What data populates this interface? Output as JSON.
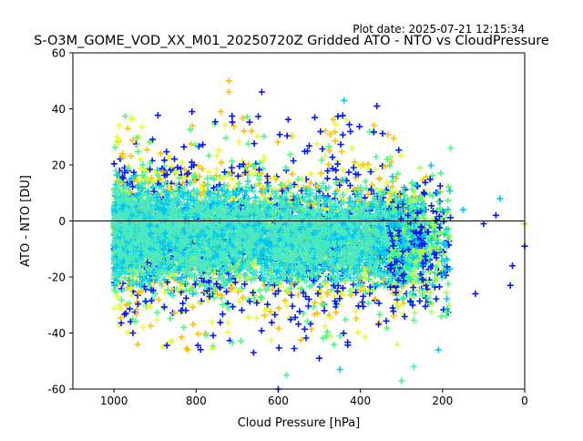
{
  "plot_date": "Plot date: 2025-07-21 12:15:34",
  "chart_data": {
    "type": "scatter",
    "title": "S-O3M_GOME_VOD_XX_M01_20250720Z Gridded ATO - NTO vs CloudPressure",
    "xlabel": "Cloud Pressure [hPa]",
    "ylabel": "ATO - NTO [DU]",
    "xlim": [
      1100,
      0
    ],
    "ylim": [
      -60,
      60
    ],
    "x_reversed": true,
    "grid": false,
    "reference_line_y": 0,
    "x_ticks": [
      1000,
      800,
      600,
      400,
      200,
      0
    ],
    "y_ticks": [
      -60,
      -40,
      -20,
      0,
      20,
      40,
      60
    ],
    "marker": "plus",
    "colors": {
      "core": "#4de8c0",
      "cyan": "#00c8f0",
      "lime": "#a8ff50",
      "yellow": "#e8ff30",
      "orange": "#ffc000",
      "blue": "#0018ff",
      "green": "#40ff80"
    },
    "sample_outliers": [
      {
        "x": 640,
        "y": 46,
        "c": "blue"
      },
      {
        "x": 720,
        "y": 50,
        "c": "orange"
      },
      {
        "x": 720,
        "y": 46,
        "c": "orange"
      },
      {
        "x": 440,
        "y": 43,
        "c": "cyan"
      },
      {
        "x": 360,
        "y": 41,
        "c": "blue"
      },
      {
        "x": 810,
        "y": 39,
        "c": "blue"
      },
      {
        "x": 740,
        "y": 39,
        "c": "orange"
      },
      {
        "x": 180,
        "y": 26,
        "c": "green"
      },
      {
        "x": 60,
        "y": 8,
        "c": "cyan"
      },
      {
        "x": 70,
        "y": 2,
        "c": "blue"
      },
      {
        "x": 0,
        "y": -1,
        "c": "orange"
      },
      {
        "x": 0,
        "y": -9,
        "c": "blue"
      },
      {
        "x": 30,
        "y": -16,
        "c": "blue"
      },
      {
        "x": 35,
        "y": -23,
        "c": "blue"
      },
      {
        "x": 210,
        "y": -46,
        "c": "cyan"
      },
      {
        "x": 600,
        "y": -60,
        "c": "blue"
      },
      {
        "x": 580,
        "y": -55,
        "c": "green"
      },
      {
        "x": 300,
        "y": -57,
        "c": "green"
      },
      {
        "x": 270,
        "y": -52,
        "c": "green"
      },
      {
        "x": 450,
        "y": -53,
        "c": "cyan"
      },
      {
        "x": 500,
        "y": -49,
        "c": "blue"
      },
      {
        "x": 660,
        "y": -47,
        "c": "blue"
      },
      {
        "x": 830,
        "y": -38,
        "c": "green"
      },
      {
        "x": 120,
        "y": -26,
        "c": "blue"
      },
      {
        "x": 150,
        "y": 4,
        "c": "cyan"
      },
      {
        "x": 100,
        "y": -1,
        "c": "blue"
      }
    ]
  }
}
